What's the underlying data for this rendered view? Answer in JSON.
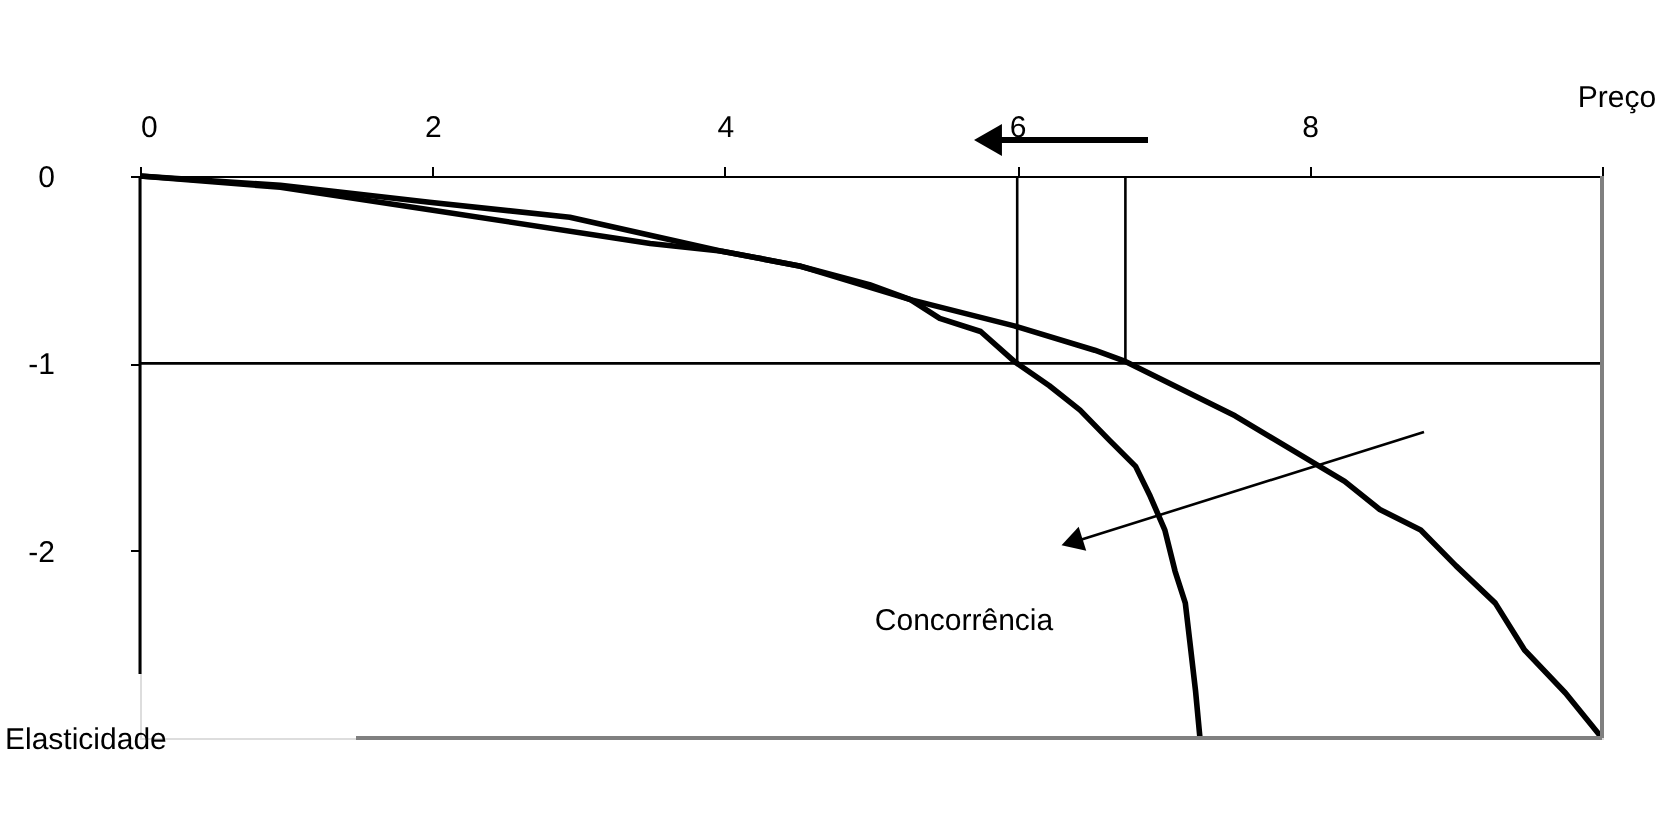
{
  "chart_data": {
    "type": "line",
    "xlabel": "Preço",
    "ylabel": "Elasticidade",
    "xlim": [
      0,
      10
    ],
    "xticks": [
      0,
      2,
      4,
      6,
      8,
      {
        "value": 10,
        "label": null
      }
    ],
    "ylim": [
      -3,
      0
    ],
    "yticks": [
      0,
      -1,
      -2
    ],
    "marker": "none",
    "line_style": "solid",
    "series": [
      {
        "color": "#000000",
        "x": [
          0,
          0.96,
          1.98,
          3.49,
          3.97,
          4.51,
          4.99,
          5.27,
          5.47,
          5.75,
          5.98,
          6.22,
          6.43,
          6.63,
          6.81,
          6.91,
          7.01,
          7.08,
          7.15,
          7.18,
          7.22,
          7.25
        ],
        "values": [
          0,
          -0.06,
          -0.18,
          -0.36,
          -0.4,
          -0.48,
          -0.58,
          -0.66,
          -0.76,
          -0.83,
          -0.99,
          -1.12,
          -1.25,
          -1.41,
          -1.55,
          -1.71,
          -1.89,
          -2.11,
          -2.28,
          -2.48,
          -2.75,
          -3
        ]
      },
      {
        "color": "#000000",
        "x": [
          0,
          0.96,
          1.98,
          2.94,
          3.97,
          4.51,
          5.27,
          5.98,
          6.53,
          6.74,
          7.49,
          8.24,
          8.48,
          8.76,
          9.0,
          9.27,
          9.47,
          9.75,
          10
        ],
        "values": [
          0,
          -0.05,
          -0.14,
          -0.22,
          -0.4,
          -0.48,
          -0.66,
          -0.8,
          -0.93,
          -0.99,
          -1.28,
          -1.63,
          -1.78,
          -1.89,
          -2.08,
          -2.28,
          -2.53,
          -2.76,
          -3
        ]
      },
      {
        "color": "#000000",
        "x": [
          6,
          6
        ],
        "values": [
          0,
          -1
        ]
      },
      {
        "color": "#000000",
        "x": [
          6.74,
          6.74
        ],
        "values": [
          0,
          -1
        ]
      }
    ],
    "ref_lines": [
      {
        "axis": "y",
        "value": -1,
        "color": "#000000"
      }
    ],
    "annotations": [
      "Concorrência"
    ]
  }
}
